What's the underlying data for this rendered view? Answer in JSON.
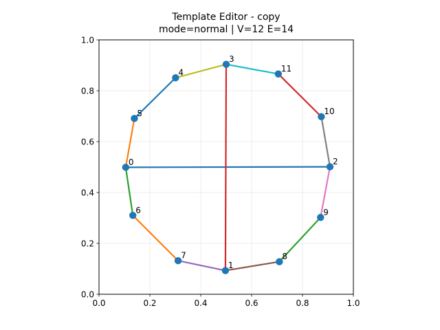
{
  "title": "Template Editor - copy",
  "subtitle": "mode=normal | V=12 E=14",
  "chart_data": {
    "type": "scatter",
    "xlim": [
      0.0,
      1.0
    ],
    "ylim": [
      0.0,
      1.0
    ],
    "grid": true,
    "x_ticks": [
      "0.0",
      "0.2",
      "0.4",
      "0.6",
      "0.8",
      "1.0"
    ],
    "y_ticks": [
      "0.0",
      "0.2",
      "0.4",
      "0.6",
      "0.8",
      "1.0"
    ],
    "node_color": "#1f77b4",
    "nodes": [
      {
        "id": "0",
        "x": 0.105,
        "y": 0.499
      },
      {
        "id": "1",
        "x": 0.497,
        "y": 0.093
      },
      {
        "id": "2",
        "x": 0.908,
        "y": 0.501
      },
      {
        "id": "3",
        "x": 0.5,
        "y": 0.904
      },
      {
        "id": "4",
        "x": 0.301,
        "y": 0.851
      },
      {
        "id": "5",
        "x": 0.139,
        "y": 0.691
      },
      {
        "id": "6",
        "x": 0.133,
        "y": 0.31
      },
      {
        "id": "7",
        "x": 0.311,
        "y": 0.132
      },
      {
        "id": "8",
        "x": 0.709,
        "y": 0.128
      },
      {
        "id": "9",
        "x": 0.871,
        "y": 0.302
      },
      {
        "id": "10",
        "x": 0.874,
        "y": 0.698
      },
      {
        "id": "11",
        "x": 0.705,
        "y": 0.866
      }
    ],
    "edges": [
      {
        "from": "0",
        "to": "2",
        "color": "#1f77b4"
      },
      {
        "from": "5",
        "to": "0",
        "color": "#ff7f0e"
      },
      {
        "from": "0",
        "to": "6",
        "color": "#2ca02c"
      },
      {
        "from": "3",
        "to": "1",
        "color": "#d62728"
      },
      {
        "from": "7",
        "to": "1",
        "color": "#9467bd"
      },
      {
        "from": "1",
        "to": "8",
        "color": "#8c564b"
      },
      {
        "from": "2",
        "to": "9",
        "color": "#e377c2"
      },
      {
        "from": "10",
        "to": "2",
        "color": "#7f7f7f"
      },
      {
        "from": "4",
        "to": "3",
        "color": "#bcbd22"
      },
      {
        "from": "3",
        "to": "11",
        "color": "#17becf"
      },
      {
        "from": "5",
        "to": "4",
        "color": "#1f77b4"
      },
      {
        "from": "6",
        "to": "7",
        "color": "#ff7f0e"
      },
      {
        "from": "8",
        "to": "9",
        "color": "#2ca02c"
      },
      {
        "from": "11",
        "to": "10",
        "color": "#d62728"
      }
    ]
  }
}
